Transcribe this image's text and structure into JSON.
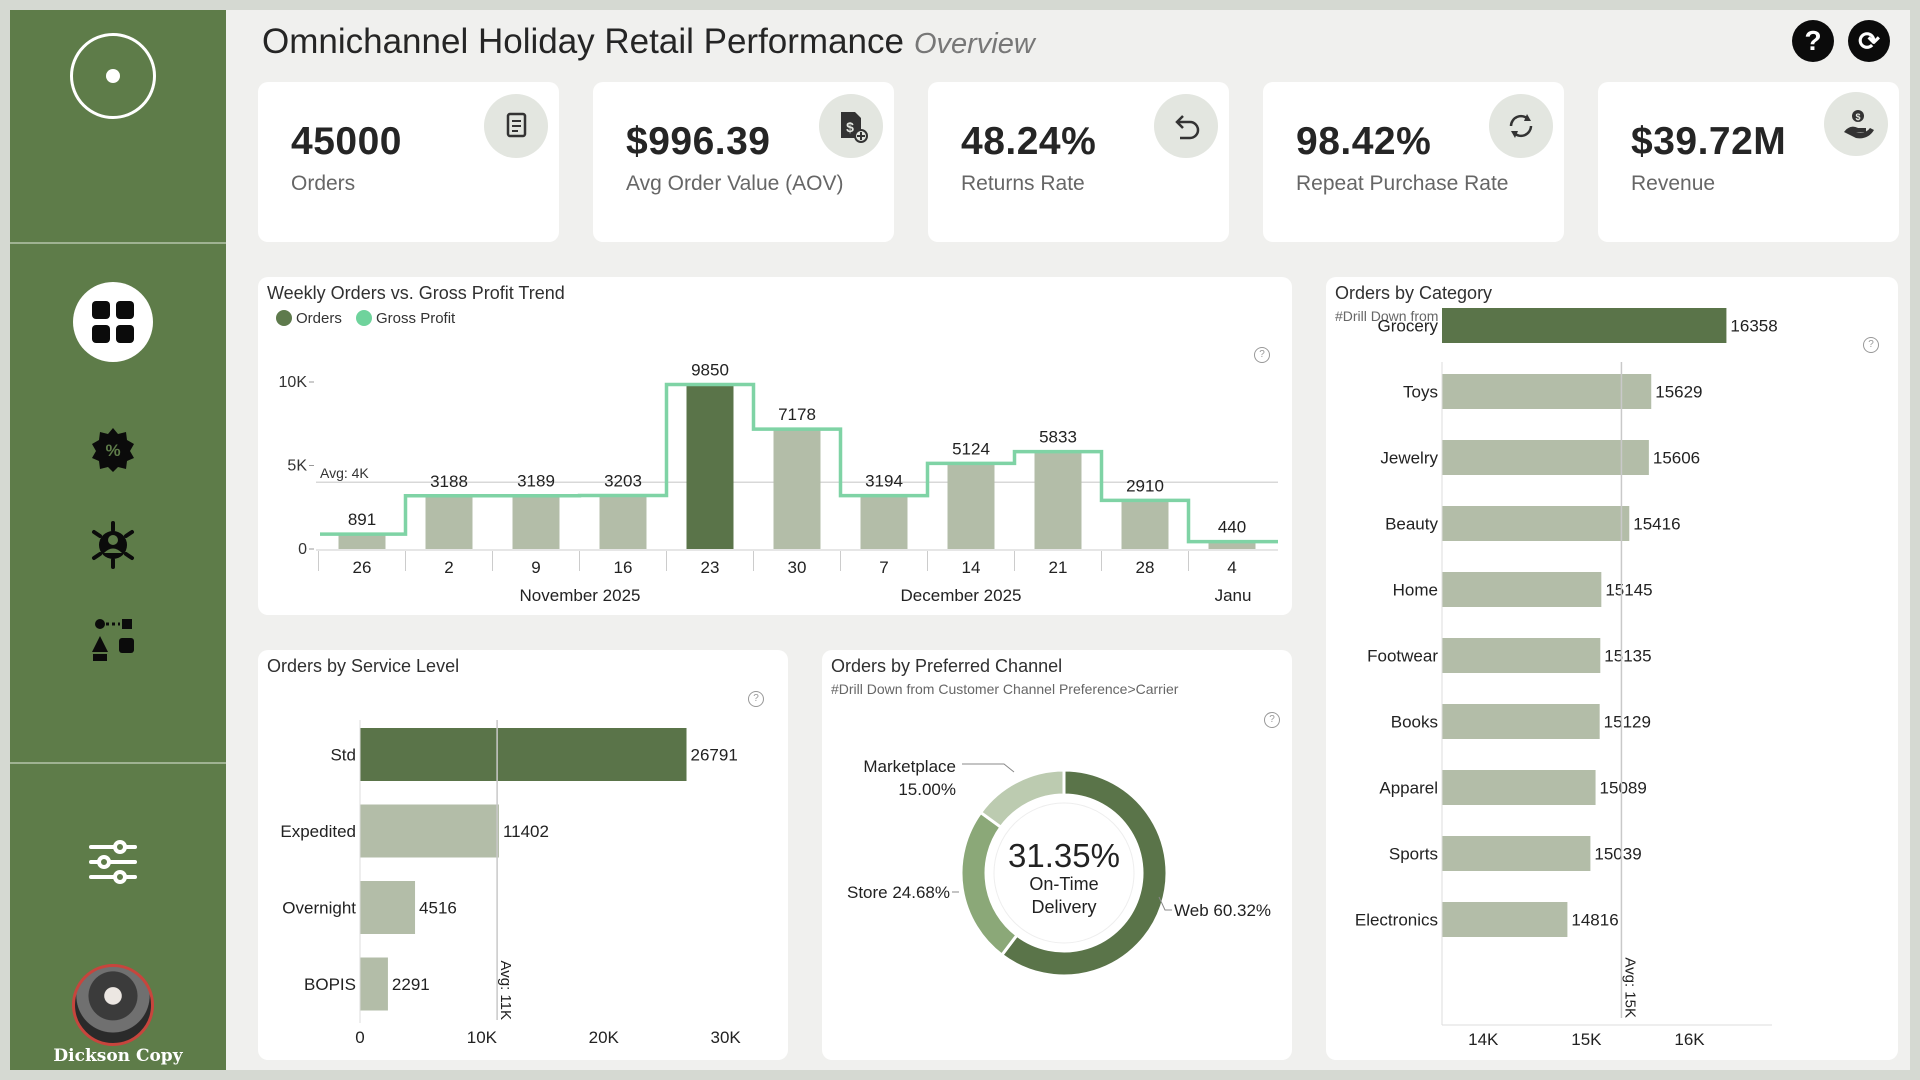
{
  "header": {
    "title": "Omnichannel Holiday Retail Performance",
    "subtitle": "Overview",
    "help_label": "?",
    "refresh_label": "⟳"
  },
  "sidebar": {
    "user_name": "Dickson Copy",
    "icons": [
      "logo-icon",
      "dashboard-grid-icon",
      "discount-badge-icon",
      "customer-network-icon",
      "workflow-icon",
      "filter-sliders-icon"
    ]
  },
  "kpis": [
    {
      "value": "45000",
      "label": "Orders",
      "icon": "receipt-icon"
    },
    {
      "value": "$996.39",
      "label": "Avg Order Value (AOV)",
      "icon": "money-doc-icon"
    },
    {
      "value": "48.24%",
      "label": "Returns Rate",
      "icon": "return-arrow-icon"
    },
    {
      "value": "98.42%",
      "label": "Repeat Purchase Rate",
      "icon": "repeat-cycle-icon"
    },
    {
      "value": "$39.72M",
      "label": "Revenue",
      "icon": "money-hand-icon"
    }
  ],
  "help_glyph": "?",
  "chart_data": [
    {
      "id": "weekly",
      "type": "bar",
      "title": "Weekly Orders vs. Gross Profit Trend",
      "legend": [
        "Orders",
        "Gross Profit"
      ],
      "categories": [
        "26",
        "2",
        "9",
        "16",
        "23",
        "30",
        "7",
        "14",
        "21",
        "28",
        "4"
      ],
      "month_labels": [
        "November 2025",
        "December 2025",
        "Janu"
      ],
      "series": [
        {
          "name": "Orders",
          "values": [
            891,
            3188,
            3189,
            3203,
            9850,
            7178,
            3194,
            5124,
            5833,
            2910,
            440
          ]
        }
      ],
      "y_ticks": [
        {
          "v": 0,
          "label": "0"
        },
        {
          "v": 5000,
          "label": "5K"
        },
        {
          "v": 10000,
          "label": "10K"
        }
      ],
      "avg_label": "Avg: 4K",
      "avg_value": 4000,
      "highlight_index": 4,
      "colors": {
        "bar": "#b3bda8",
        "highlight": "#5a7449",
        "line": "#7fd3a5",
        "legend_orders": "#5e7a4c",
        "legend_profit": "#6fd39c"
      }
    },
    {
      "id": "category",
      "type": "bar",
      "orientation": "horizontal",
      "title": "Orders by Category",
      "subtitle": "#Drill Down from Category>Subcategory",
      "categories": [
        "Grocery",
        "Toys",
        "Jewelry",
        "Beauty",
        "Home",
        "Footwear",
        "Books",
        "Apparel",
        "Sports",
        "Electronics"
      ],
      "values": [
        16358,
        15629,
        15606,
        15416,
        15145,
        15135,
        15129,
        15089,
        15039,
        14816
      ],
      "xlim": [
        13600,
        16800
      ],
      "x_ticks": [
        {
          "v": 14000,
          "label": "14K"
        },
        {
          "v": 15000,
          "label": "15K"
        },
        {
          "v": 16000,
          "label": "16K"
        }
      ],
      "avg_label": "Avg: 15K",
      "avg_value": 15340,
      "colors": {
        "bar": "#b3bda8",
        "highlight": "#5a7449"
      }
    },
    {
      "id": "service",
      "type": "bar",
      "orientation": "horizontal",
      "title": "Orders by Service Level",
      "categories": [
        "Std",
        "Expedited",
        "Overnight",
        "BOPIS"
      ],
      "values": [
        26791,
        11402,
        4516,
        2291
      ],
      "xlim": [
        0,
        32000
      ],
      "x_ticks": [
        {
          "v": 0,
          "label": "0"
        },
        {
          "v": 10000,
          "label": "10K"
        },
        {
          "v": 20000,
          "label": "20K"
        },
        {
          "v": 30000,
          "label": "30K"
        }
      ],
      "avg_label": "Avg: 11K",
      "avg_value": 11250,
      "colors": {
        "bar": "#b3bda8",
        "highlight": "#5a7449"
      }
    },
    {
      "id": "channel",
      "type": "pie",
      "title": "Orders by Preferred Channel",
      "subtitle": "#Drill Down from Customer Channel Preference>Carrier",
      "center_value": "31.35%",
      "center_label_1": "On-Time",
      "center_label_2": "Delivery",
      "slices": [
        {
          "name": "Web",
          "value": 60.32,
          "label": "Web 60.32%",
          "color": "#5a7449"
        },
        {
          "name": "Store",
          "value": 24.68,
          "label": "Store 24.68%",
          "color": "#8ba878"
        },
        {
          "name": "Marketplace",
          "value": 15.0,
          "label": "Marketplace",
          "pct_label": "15.00%",
          "color": "#bccbb0"
        }
      ]
    }
  ]
}
